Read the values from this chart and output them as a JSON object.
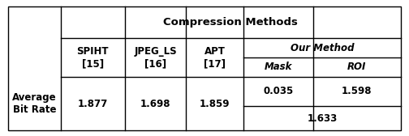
{
  "title": "Compression Methods",
  "col_headers": [
    "SPIHT\n[15]",
    "JPEG_LS\n[16]",
    "APT\n[17]"
  ],
  "our_method_header": "Our Method",
  "sub_headers": [
    "Mask",
    "ROI"
  ],
  "row_label": "Average\nBit Rate",
  "values": [
    "1.877",
    "1.698",
    "1.859"
  ],
  "our_mask": "0.035",
  "our_roi": "1.598",
  "our_avg": "1.633",
  "bg_color": "#ffffff",
  "border_color": "#000000",
  "font_size": 8.5,
  "title_font_size": 9.5,
  "col_bounds": [
    0.02,
    0.148,
    0.305,
    0.455,
    0.595,
    0.765,
    0.98
  ],
  "row_bounds": [
    0.95,
    0.72,
    0.435,
    0.22,
    0.04
  ]
}
